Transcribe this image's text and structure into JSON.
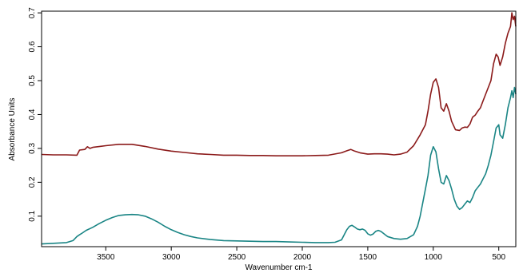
{
  "chart_data": {
    "type": "line",
    "title": "",
    "xlabel": "Wavenumber cm-1",
    "ylabel": "Absorbance Units",
    "xlim": [
      3990,
      370
    ],
    "ylim": [
      0.01,
      0.705
    ],
    "x_reversed": true,
    "grid": false,
    "legend": "none",
    "x_ticks": [
      3500,
      3000,
      2500,
      2000,
      1500,
      1000,
      500
    ],
    "x_tick_labels": [
      "3500",
      "3000",
      "2500",
      "2000",
      "1500",
      "1000",
      "500"
    ],
    "y_ticks": [
      0.1,
      0.2,
      0.3,
      0.4,
      0.5,
      0.6,
      0.7
    ],
    "y_tick_labels": [
      "0.1",
      "0.2",
      "0.3",
      "0.4",
      "0.5",
      "0.6",
      "0.7"
    ],
    "series": [
      {
        "color": "#8b1a1a",
        "x": [
          3990,
          3900,
          3800,
          3720,
          3700,
          3660,
          3640,
          3620,
          3600,
          3500,
          3400,
          3300,
          3200,
          3100,
          3000,
          2900,
          2800,
          2700,
          2600,
          2500,
          2400,
          2300,
          2200,
          2100,
          2000,
          1900,
          1800,
          1700,
          1660,
          1630,
          1600,
          1560,
          1500,
          1450,
          1400,
          1350,
          1300,
          1250,
          1200,
          1150,
          1100,
          1060,
          1040,
          1020,
          1000,
          980,
          960,
          940,
          920,
          900,
          880,
          860,
          830,
          800,
          780,
          760,
          740,
          720,
          700,
          680,
          660,
          640,
          620,
          600,
          580,
          560,
          540,
          520,
          505,
          490,
          470,
          450,
          430,
          410,
          400,
          390,
          380,
          370
        ],
        "y": [
          0.282,
          0.281,
          0.281,
          0.28,
          0.295,
          0.297,
          0.305,
          0.3,
          0.303,
          0.308,
          0.312,
          0.312,
          0.306,
          0.298,
          0.292,
          0.288,
          0.284,
          0.282,
          0.28,
          0.28,
          0.279,
          0.279,
          0.278,
          0.278,
          0.278,
          0.279,
          0.28,
          0.287,
          0.293,
          0.297,
          0.292,
          0.287,
          0.283,
          0.284,
          0.284,
          0.283,
          0.281,
          0.283,
          0.289,
          0.308,
          0.34,
          0.37,
          0.41,
          0.46,
          0.495,
          0.505,
          0.48,
          0.42,
          0.41,
          0.432,
          0.41,
          0.38,
          0.355,
          0.353,
          0.36,
          0.363,
          0.362,
          0.372,
          0.392,
          0.398,
          0.41,
          0.42,
          0.44,
          0.46,
          0.48,
          0.5,
          0.55,
          0.578,
          0.57,
          0.545,
          0.57,
          0.61,
          0.64,
          0.66,
          0.7,
          0.68,
          0.69,
          0.66
        ]
      },
      {
        "color": "#1a8585",
        "x": [
          3990,
          3900,
          3800,
          3750,
          3720,
          3700,
          3680,
          3650,
          3600,
          3550,
          3500,
          3450,
          3400,
          3350,
          3300,
          3250,
          3200,
          3150,
          3100,
          3050,
          3000,
          2950,
          2900,
          2850,
          2800,
          2700,
          2600,
          2500,
          2400,
          2300,
          2200,
          2100,
          2000,
          1900,
          1800,
          1750,
          1700,
          1680,
          1660,
          1640,
          1620,
          1600,
          1580,
          1560,
          1540,
          1520,
          1500,
          1480,
          1460,
          1440,
          1420,
          1400,
          1350,
          1300,
          1250,
          1200,
          1150,
          1120,
          1100,
          1080,
          1060,
          1040,
          1020,
          1000,
          980,
          960,
          940,
          920,
          900,
          880,
          860,
          840,
          820,
          800,
          780,
          760,
          740,
          720,
          700,
          680,
          660,
          640,
          620,
          600,
          580,
          560,
          540,
          520,
          500,
          490,
          470,
          450,
          430,
          410,
          400,
          390,
          380,
          370
        ],
        "y": [
          0.018,
          0.02,
          0.022,
          0.028,
          0.04,
          0.045,
          0.05,
          0.058,
          0.067,
          0.078,
          0.088,
          0.096,
          0.102,
          0.104,
          0.105,
          0.104,
          0.1,
          0.092,
          0.082,
          0.07,
          0.06,
          0.052,
          0.045,
          0.04,
          0.036,
          0.031,
          0.028,
          0.027,
          0.026,
          0.025,
          0.025,
          0.024,
          0.023,
          0.022,
          0.022,
          0.023,
          0.03,
          0.045,
          0.06,
          0.07,
          0.073,
          0.068,
          0.062,
          0.06,
          0.062,
          0.058,
          0.048,
          0.044,
          0.047,
          0.055,
          0.058,
          0.055,
          0.04,
          0.034,
          0.032,
          0.034,
          0.045,
          0.07,
          0.1,
          0.14,
          0.18,
          0.22,
          0.28,
          0.305,
          0.29,
          0.24,
          0.2,
          0.195,
          0.22,
          0.205,
          0.18,
          0.15,
          0.13,
          0.12,
          0.125,
          0.135,
          0.145,
          0.14,
          0.155,
          0.175,
          0.185,
          0.195,
          0.21,
          0.225,
          0.25,
          0.28,
          0.32,
          0.36,
          0.37,
          0.34,
          0.33,
          0.37,
          0.42,
          0.45,
          0.47,
          0.45,
          0.48,
          0.46
        ]
      }
    ]
  }
}
